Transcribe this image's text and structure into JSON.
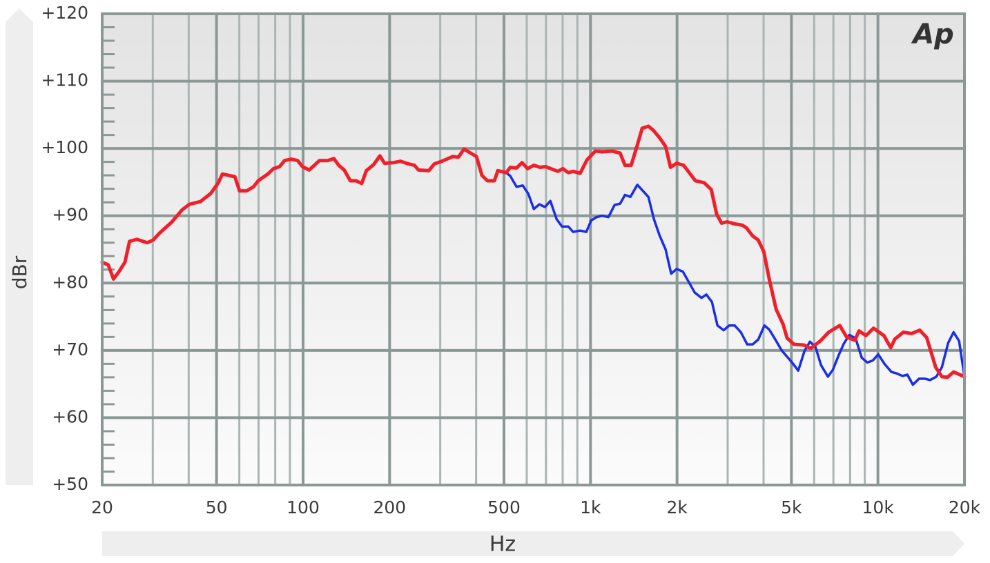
{
  "chart_data": {
    "type": "line",
    "logo": "Ap",
    "xlabel": "Hz",
    "ylabel": "dBr",
    "xscale": "log",
    "grid": true,
    "xlim": [
      20,
      20000
    ],
    "ylim": [
      50,
      120
    ],
    "xticks": [
      20,
      50,
      100,
      200,
      500,
      {
        "value": 1000,
        "label": "1k"
      },
      {
        "value": 2000,
        "label": "2k"
      },
      {
        "value": 5000,
        "label": "5k"
      },
      {
        "value": 10000,
        "label": "10k"
      },
      {
        "value": 20000,
        "label": "20k"
      }
    ],
    "xminorticks": [
      30,
      40,
      60,
      70,
      80,
      90,
      300,
      400,
      600,
      700,
      800,
      900,
      3000,
      4000,
      6000,
      7000,
      8000,
      9000
    ],
    "yticks": [
      {
        "value": 50,
        "label": "+50"
      },
      {
        "value": 60,
        "label": "+60"
      },
      {
        "value": 70,
        "label": "+70"
      },
      {
        "value": 80,
        "label": "+80"
      },
      {
        "value": 90,
        "label": "+90"
      },
      {
        "value": 100,
        "label": "+100"
      },
      {
        "value": 110,
        "label": "+110"
      },
      {
        "value": 120,
        "label": "+120"
      }
    ],
    "yminorticks": [
      52,
      54,
      56,
      58,
      62,
      64,
      66,
      68,
      72,
      74,
      76,
      78,
      82,
      84,
      86,
      88,
      92,
      94,
      96,
      98,
      102,
      104,
      106,
      108,
      112,
      114,
      116,
      118
    ],
    "series": [
      {
        "color": "#f0202a",
        "x": [
          20,
          21,
          21.9,
          22.8,
          24,
          24.9,
          26.4,
          28.7,
          30.1,
          31.8,
          34.8,
          38,
          40.2,
          43.9,
          47.7,
          50.7,
          52.4,
          57.9,
          60.1,
          63.6,
          67.2,
          69.8,
          75.4,
          78.9,
          82.9,
          86.2,
          91.1,
          95.7,
          99.5,
          105,
          114,
          122,
          128,
          133,
          139,
          146,
          153,
          160,
          166,
          176,
          185,
          192,
          207,
          218,
          233,
          244,
          252,
          274,
          286,
          304,
          332,
          347,
          363,
          401,
          419,
          438,
          463,
          476,
          509,
          526,
          553,
          578,
          604,
          635,
          667,
          697,
          770,
          801,
          837,
          870,
          920,
          972,
          1039,
          1098,
          1193,
          1268,
          1318,
          1385,
          1455,
          1513,
          1590,
          1653,
          1738,
          1825,
          1898,
          1995,
          2108,
          2317,
          2488,
          2630,
          2749,
          2858,
          2988,
          3175,
          3373,
          3488,
          3666,
          3832,
          4006,
          4186,
          4424,
          4676,
          4834,
          5110,
          5522,
          5834,
          6304,
          6738,
          7362,
          7778,
          8312,
          8594,
          9084,
          9654,
          10490,
          11080,
          11460,
          12250,
          13090,
          13980,
          14780,
          15880,
          16690,
          17450,
          18330,
          20000
        ],
        "values": [
          83.1,
          82.7,
          80.6,
          81.6,
          83.1,
          86.2,
          86.5,
          86.0,
          86.4,
          87.5,
          89.0,
          90.9,
          91.7,
          92.1,
          93.3,
          94.9,
          96.2,
          95.8,
          93.7,
          93.7,
          94.3,
          95.2,
          96.2,
          97.0,
          97.3,
          98.2,
          98.4,
          98.2,
          97.3,
          96.8,
          98.2,
          98.2,
          98.5,
          97.5,
          96.8,
          95.2,
          95.2,
          94.8,
          96.7,
          97.6,
          98.9,
          97.8,
          97.9,
          98.1,
          97.7,
          97.5,
          96.8,
          96.7,
          97.7,
          98.1,
          98.8,
          98.7,
          99.9,
          98.8,
          96.0,
          95.2,
          95.2,
          96.7,
          96.4,
          97.2,
          97.1,
          97.9,
          97.0,
          97.5,
          97.2,
          97.3,
          96.6,
          97.0,
          96.4,
          96.6,
          96.3,
          98.3,
          99.6,
          99.5,
          99.6,
          99.3,
          97.5,
          97.5,
          100.5,
          103.0,
          103.3,
          102.7,
          101.6,
          100.3,
          97.2,
          97.8,
          97.5,
          95.2,
          94.9,
          93.9,
          90.2,
          88.9,
          89.1,
          88.8,
          88.6,
          88.2,
          87.0,
          86.4,
          84.7,
          80.6,
          76.1,
          73.9,
          71.8,
          70.9,
          70.8,
          70.3,
          71.4,
          72.7,
          73.7,
          72.0,
          71.5,
          72.9,
          72.2,
          73.3,
          72.2,
          70.4,
          71.7,
          72.7,
          72.5,
          73.0,
          71.9,
          67.5,
          66.1,
          66.0,
          66.8,
          66.1
        ]
      },
      {
        "color": "#1a2ee8",
        "x": [
          476,
          509,
          526,
          553,
          581,
          607,
          635,
          664,
          694,
          725,
          762,
          796,
          837,
          870,
          920,
          967,
          1005,
          1050,
          1098,
          1154,
          1213,
          1268,
          1318,
          1377,
          1455,
          1521,
          1590,
          1662,
          1738,
          1825,
          1908,
          1995,
          2096,
          2304,
          2434,
          2530,
          2645,
          2765,
          2906,
          3038,
          3175,
          3336,
          3507,
          3666,
          3832,
          4028,
          4186,
          4398,
          4624,
          5026,
          5282,
          5550,
          5800,
          6064,
          6340,
          6700,
          6966,
          7322,
          7608,
          7952,
          8360,
          8786,
          9184,
          9596,
          10030,
          10540,
          11140,
          11580,
          12180,
          12660,
          13230,
          13900,
          14530,
          15190,
          15970,
          16690,
          17550,
          18330,
          19160,
          20000
        ],
        "values": [
          96.7,
          96.4,
          95.9,
          94.3,
          94.5,
          93.3,
          91.0,
          91.7,
          91.3,
          92.2,
          89.5,
          88.4,
          88.4,
          87.6,
          87.8,
          87.6,
          89.3,
          89.8,
          90.0,
          89.8,
          91.6,
          91.8,
          93.1,
          92.8,
          94.6,
          93.7,
          92.8,
          89.5,
          87.1,
          85.0,
          81.4,
          82.1,
          81.7,
          78.6,
          77.8,
          78.3,
          77.2,
          73.7,
          73.0,
          73.7,
          73.7,
          72.7,
          70.9,
          70.9,
          71.6,
          73.7,
          73.1,
          71.6,
          70.0,
          68.2,
          67.0,
          69.9,
          71.3,
          70.5,
          67.8,
          66.1,
          67.1,
          69.4,
          71.0,
          72.3,
          71.8,
          68.9,
          68.2,
          68.5,
          69.4,
          68.0,
          66.8,
          66.6,
          66.2,
          66.4,
          64.9,
          65.8,
          65.8,
          65.6,
          66.1,
          67.5,
          71.1,
          72.7,
          71.4,
          66.1
        ]
      }
    ]
  }
}
